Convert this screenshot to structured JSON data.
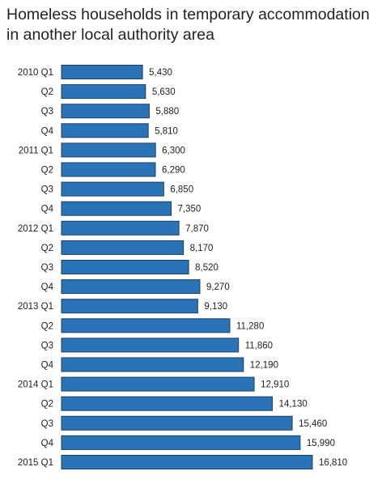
{
  "chart_data": {
    "type": "bar",
    "orientation": "horizontal",
    "title": "Homeless households in temporary accommodation in another local authority area",
    "xlabel": "",
    "ylabel": "",
    "categories": [
      "2010 Q1",
      "Q2",
      "Q3",
      "Q4",
      "2011 Q1",
      "Q2",
      "Q3",
      "Q4",
      "2012 Q1",
      "Q2",
      "Q3",
      "Q4",
      "2013 Q1",
      "Q2",
      "Q3",
      "Q4",
      "2014 Q1",
      "Q2",
      "Q3",
      "Q4",
      "2015 Q1"
    ],
    "values": [
      5430,
      5630,
      5880,
      5810,
      6300,
      6290,
      6850,
      7350,
      7870,
      8170,
      8520,
      9270,
      9130,
      11280,
      11860,
      12190,
      12910,
      14130,
      15460,
      15990,
      16810
    ],
    "value_labels": [
      "5,430",
      "5,630",
      "5,880",
      "5,810",
      "6,300",
      "6,290",
      "6,850",
      "7,350",
      "7,870",
      "8,170",
      "8,520",
      "9,270",
      "9,130",
      "11,280",
      "11,860",
      "12,190",
      "12,910",
      "14,130",
      "15,460",
      "15,990",
      "16,810"
    ],
    "xlim": [
      0,
      16810
    ],
    "grid": false,
    "legend": "none",
    "bar_color": "#2a73b6",
    "bar_edge_color": "#1d3f63"
  }
}
